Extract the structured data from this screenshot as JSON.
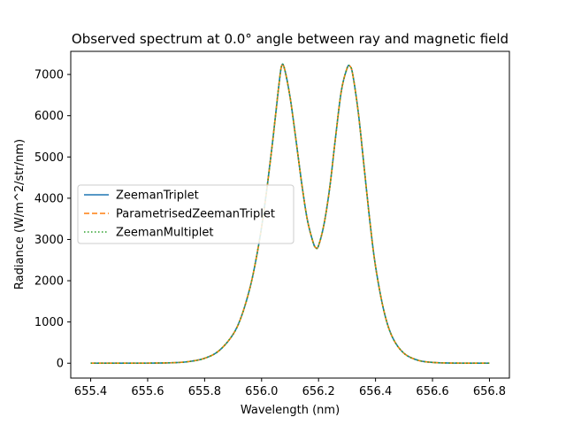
{
  "chart_data": {
    "type": "line",
    "title": "Observed spectrum at 0.0° angle between ray and magnetic field",
    "xlabel": "Wavelength (nm)",
    "ylabel": "Radiance (W/m^2/str/nm)",
    "xlim": [
      655.33,
      656.87
    ],
    "ylim": [
      -360,
      7560
    ],
    "xticks": [
      655.4,
      655.6,
      655.8,
      656.0,
      656.2,
      656.4,
      656.6,
      656.8
    ],
    "xtick_labels": [
      "655.4",
      "655.6",
      "655.8",
      "656.0",
      "656.2",
      "656.4",
      "656.6",
      "656.8"
    ],
    "yticks": [
      0,
      1000,
      2000,
      3000,
      4000,
      5000,
      6000,
      7000
    ],
    "ytick_labels": [
      "0",
      "1000",
      "2000",
      "3000",
      "4000",
      "5000",
      "6000",
      "7000"
    ],
    "grid": false,
    "legend_position": "center-left",
    "x": [
      655.4,
      655.5,
      655.6,
      655.7,
      655.75,
      655.8,
      655.85,
      655.9,
      655.93,
      655.96,
      655.98,
      656.0,
      656.02,
      656.04,
      656.06,
      656.07,
      656.08,
      656.1,
      656.12,
      656.14,
      656.16,
      656.18,
      656.19,
      656.2,
      656.22,
      656.24,
      656.26,
      656.28,
      656.3,
      656.31,
      656.32,
      656.34,
      656.36,
      656.38,
      656.4,
      656.43,
      656.46,
      656.5,
      656.55,
      656.6,
      656.65,
      656.7,
      656.8
    ],
    "series": [
      {
        "name": "ZeemanTriplet",
        "color": "#1f77b4",
        "dash": "solid",
        "values": [
          0,
          0,
          2,
          15,
          45,
          120,
          300,
          700,
          1150,
          1850,
          2500,
          3300,
          4300,
          5450,
          6700,
          7200,
          7150,
          6450,
          5450,
          4400,
          3500,
          2950,
          2800,
          2850,
          3400,
          4300,
          5500,
          6600,
          7150,
          7200,
          7000,
          6050,
          4750,
          3450,
          2350,
          1250,
          620,
          240,
          70,
          20,
          6,
          2,
          0
        ]
      },
      {
        "name": "ParametrisedZeemanTriplet",
        "color": "#ff7f0e",
        "dash": "dashed",
        "values": [
          0,
          0,
          2,
          15,
          45,
          120,
          300,
          700,
          1150,
          1850,
          2500,
          3300,
          4300,
          5450,
          6700,
          7200,
          7150,
          6450,
          5450,
          4400,
          3500,
          2950,
          2800,
          2850,
          3400,
          4300,
          5500,
          6600,
          7150,
          7200,
          7000,
          6050,
          4750,
          3450,
          2350,
          1250,
          620,
          240,
          70,
          20,
          6,
          2,
          0
        ]
      },
      {
        "name": "ZeemanMultiplet",
        "color": "#2ca02c",
        "dash": "dotted",
        "values": [
          0,
          0,
          2,
          15,
          45,
          120,
          300,
          700,
          1150,
          1850,
          2500,
          3300,
          4300,
          5450,
          6700,
          7200,
          7150,
          6450,
          5450,
          4400,
          3500,
          2950,
          2800,
          2850,
          3400,
          4300,
          5500,
          6600,
          7150,
          7200,
          7000,
          6050,
          4750,
          3450,
          2350,
          1250,
          620,
          240,
          70,
          20,
          6,
          2,
          0
        ]
      }
    ]
  }
}
